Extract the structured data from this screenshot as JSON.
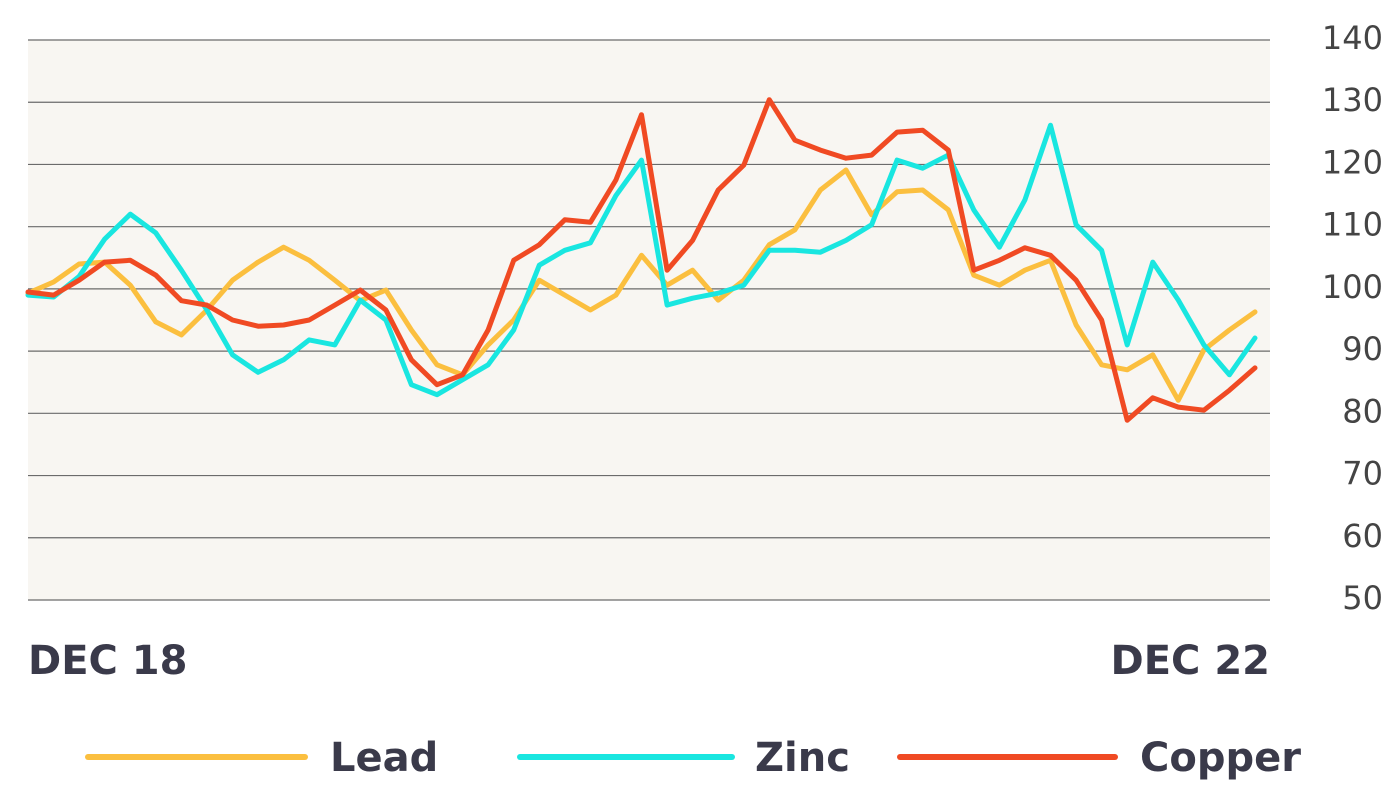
{
  "chart_data": {
    "type": "line",
    "categories": [
      "DEC 18",
      null,
      null,
      null,
      null,
      null,
      null,
      null,
      null,
      null,
      null,
      null,
      null,
      null,
      null,
      null,
      null,
      null,
      null,
      null,
      null,
      null,
      null,
      null,
      null,
      null,
      null,
      null,
      null,
      null,
      null,
      null,
      null,
      null,
      null,
      null,
      null,
      null,
      null,
      null,
      null,
      null,
      null,
      null,
      null,
      null,
      null,
      null,
      "DEC 22"
    ],
    "series": [
      {
        "name": "Lead",
        "color": "#fbbf3f",
        "values": [
          99.3,
          101.1,
          104,
          104.3,
          100.6,
          94.7,
          92.6,
          96.6,
          101.4,
          104.3,
          106.7,
          104.6,
          101.4,
          98.1,
          99.8,
          93.4,
          87.8,
          86.2,
          91,
          95,
          101.4,
          99,
          96.6,
          99,
          105.4,
          100.6,
          103,
          98.2,
          101.4,
          107.1,
          109.5,
          115.9,
          119.1,
          111.9,
          115.6,
          115.9,
          112.7,
          102.2,
          100.6,
          103,
          104.6,
          94.2,
          87.8,
          87,
          89.4,
          82.1,
          90.2,
          93.4,
          96.3
        ]
      },
      {
        "name": "Zinc",
        "color": "#19e6e0",
        "values": [
          99,
          98.7,
          102,
          108,
          112,
          109,
          103,
          96.6,
          89.4,
          86.6,
          88.6,
          91.8,
          91,
          98.2,
          95,
          84.6,
          83,
          85.4,
          87.8,
          93.4,
          103.8,
          106.2,
          107.4,
          115,
          120.7,
          97.4,
          98.5,
          99.3,
          100.6,
          106.2,
          106.2,
          105.9,
          107.8,
          110.3,
          120.7,
          119.4,
          121.5,
          112.7,
          106.7,
          114.3,
          126.3,
          110.3,
          106.2,
          91,
          104.3,
          98.2,
          91,
          86.2,
          92.1
        ]
      },
      {
        "name": "Copper",
        "color": "#f04a23",
        "values": [
          99.5,
          99,
          101.4,
          104.3,
          104.6,
          102.2,
          98.1,
          97.4,
          95,
          94,
          94.2,
          95,
          97.4,
          99.8,
          96.6,
          88.6,
          84.6,
          86.2,
          93.4,
          104.6,
          107.1,
          111.1,
          110.7,
          117.5,
          128,
          103,
          107.8,
          115.9,
          119.9,
          130.4,
          123.9,
          122.3,
          121,
          121.5,
          125.2,
          125.5,
          122.3,
          103,
          104.6,
          106.6,
          105.4,
          101.4,
          95,
          78.9,
          82.5,
          81,
          80.5,
          83.7,
          87.3
        ]
      }
    ],
    "ylim": [
      50,
      140
    ],
    "yticks": [
      50,
      60,
      70,
      80,
      90,
      100,
      110,
      120,
      130,
      140
    ],
    "grid": true
  }
}
